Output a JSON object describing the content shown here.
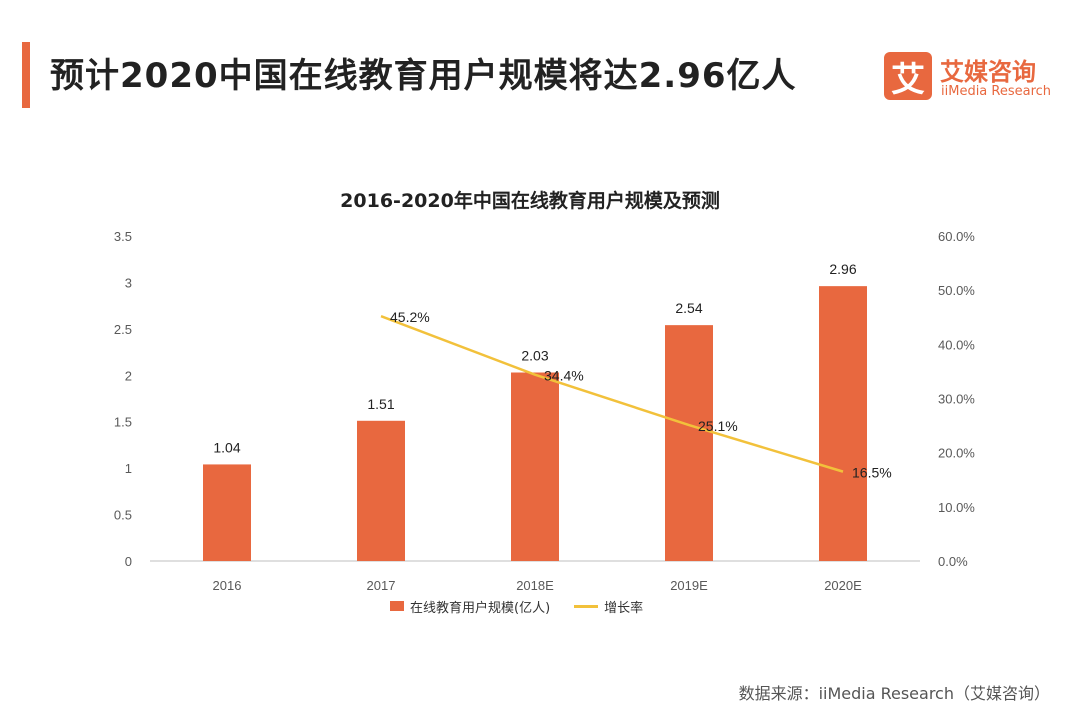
{
  "header": {
    "title": "预计2020中国在线教育用户规模将达2.96亿人",
    "logo_mark": "艾",
    "logo_cn": "艾媒咨询",
    "logo_en": "iiMedia Research",
    "accent_color": "#e8683f"
  },
  "chart_data": {
    "type": "bar",
    "title": "2016-2020年中国在线教育用户规模及预测",
    "categories": [
      "2016",
      "2017",
      "2018E",
      "2019E",
      "2020E"
    ],
    "series": [
      {
        "name": "在线教育用户规模(亿人)",
        "type": "bar",
        "axis": "left",
        "color": "#e8683f",
        "values": [
          1.04,
          1.51,
          2.03,
          2.54,
          2.96
        ],
        "labels": [
          "1.04",
          "1.51",
          "2.03",
          "2.54",
          "2.96"
        ]
      },
      {
        "name": "增长率",
        "type": "line",
        "axis": "right",
        "color": "#f2c13b",
        "values": [
          null,
          45.2,
          34.4,
          25.1,
          16.5
        ],
        "labels": [
          "",
          "45.2%",
          "34.4%",
          "25.1%",
          "16.5%"
        ]
      }
    ],
    "y_left": {
      "min": 0,
      "max": 3.5,
      "ticks": [
        "0",
        "0.5",
        "1",
        "1.5",
        "2",
        "2.5",
        "3",
        "3.5"
      ]
    },
    "y_right": {
      "min": 0,
      "max": 60,
      "ticks": [
        "0.0%",
        "10.0%",
        "20.0%",
        "30.0%",
        "40.0%",
        "50.0%",
        "60.0%"
      ]
    },
    "legend_position": "bottom",
    "grid": false
  },
  "footer": {
    "source": "数据来源：iiMedia Research（艾媒咨询）"
  }
}
